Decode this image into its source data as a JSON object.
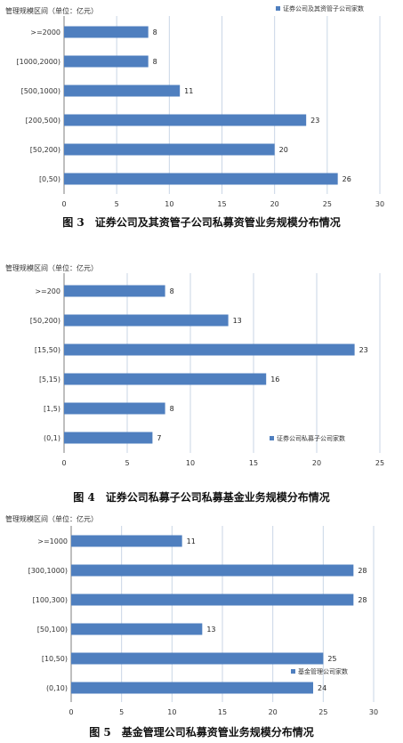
{
  "bar_color": "#4f7fbf",
  "grid_color": "#c9d6e6",
  "chart_data": [
    {
      "type": "bar",
      "orientation": "horizontal",
      "title": "",
      "ylabel": "管理规模区间（单位：亿元）",
      "categories": [
        ">=2000",
        "[1000,2000)",
        "[500,1000)",
        "[200,500)",
        "[50,200)",
        "[0,50)"
      ],
      "series": [
        {
          "name": "证券公司及其资管子公司家数",
          "values": [
            8,
            8,
            11,
            23,
            20,
            26
          ]
        }
      ],
      "xlim": [
        0,
        30
      ],
      "xticks": [
        0,
        5,
        10,
        15,
        20,
        25,
        30
      ],
      "grid": true,
      "legend": "top-right",
      "caption": "图 3　证券公司及其资管子公司私募资管业务规模分布情况"
    },
    {
      "type": "bar",
      "orientation": "horizontal",
      "title": "",
      "ylabel": "管理规模区间（单位：亿元）",
      "categories": [
        ">=200",
        "[50,200)",
        "[15,50)",
        "[5,15)",
        "[1,5)",
        "(0,1)"
      ],
      "series": [
        {
          "name": "证券公司私募子公司家数",
          "values": [
            8,
            13,
            23,
            16,
            8,
            7
          ]
        }
      ],
      "xlim": [
        0,
        25
      ],
      "xticks": [
        0,
        5,
        10,
        15,
        20,
        25
      ],
      "grid": true,
      "legend": "bottom-right",
      "caption": "图 4　证券公司私募子公司私募基金业务规模分布情况"
    },
    {
      "type": "bar",
      "orientation": "horizontal",
      "title": "",
      "ylabel": "管理规模区间（单位：亿元）",
      "categories": [
        ">=1000",
        "[300,1000)",
        "[100,300)",
        "[50,100)",
        "[10,50)",
        "(0,10)"
      ],
      "series": [
        {
          "name": "基金管理公司家数",
          "values": [
            11,
            28,
            28,
            13,
            25,
            24
          ]
        }
      ],
      "xlim": [
        0,
        30
      ],
      "xticks": [
        0,
        5,
        10,
        15,
        20,
        25,
        30
      ],
      "grid": true,
      "legend": "bottom-right",
      "caption": "图 5　基金管理公司私募资管业务规模分布情况"
    }
  ]
}
